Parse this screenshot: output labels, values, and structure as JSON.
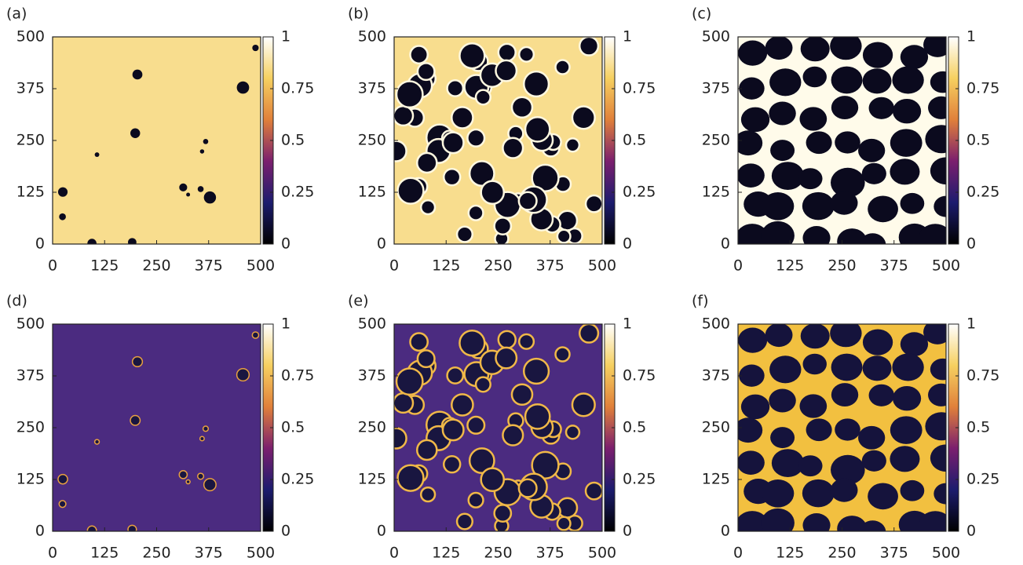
{
  "chart_data": [
    {
      "type": "heatmap",
      "label": "(a)",
      "xlim": [
        0,
        500
      ],
      "ylim": [
        0,
        500
      ],
      "xticks": [
        0,
        125,
        250,
        375,
        500
      ],
      "yticks": [
        0,
        125,
        250,
        375,
        500
      ],
      "zlim": [
        0,
        1
      ],
      "zticks": [
        0,
        0.25,
        0.5,
        0.75,
        1
      ],
      "colormap": [
        "#000000",
        "#1c1c6e",
        "#7b1f6e",
        "#e0803a",
        "#f6d060",
        "#ffffff"
      ],
      "background_color": "#f8dd8e",
      "blob_color": "#0b0a1e"
    },
    {
      "type": "heatmap",
      "label": "(b)",
      "xlim": [
        0,
        500
      ],
      "ylim": [
        0,
        500
      ],
      "xticks": [
        0,
        125,
        250,
        375,
        500
      ],
      "yticks": [
        0,
        125,
        250,
        375,
        500
      ],
      "zlim": [
        0,
        1
      ],
      "zticks": [
        0,
        0.25,
        0.5,
        0.75,
        1
      ],
      "colormap": [
        "#000000",
        "#1c1c6e",
        "#7b1f6e",
        "#e0803a",
        "#f6d060",
        "#ffffff"
      ],
      "background_color": "#f8dd8e",
      "blob_color": "#0b0a1e",
      "blob_outline": "#fff8e0"
    },
    {
      "type": "heatmap",
      "label": "(c)",
      "xlim": [
        0,
        500
      ],
      "ylim": [
        0,
        500
      ],
      "xticks": [
        0,
        125,
        250,
        375,
        500
      ],
      "yticks": [
        0,
        125,
        250,
        375,
        500
      ],
      "zlim": [
        0,
        1
      ],
      "zticks": [
        0,
        0.25,
        0.5,
        0.75,
        1
      ],
      "colormap": [
        "#000000",
        "#1c1c6e",
        "#7b1f6e",
        "#e0803a",
        "#f6d060",
        "#ffffff"
      ],
      "background_color": "#fffbea",
      "blob_color": "#0b0a1e"
    },
    {
      "type": "heatmap",
      "label": "(d)",
      "xlim": [
        0,
        500
      ],
      "ylim": [
        0,
        500
      ],
      "xticks": [
        0,
        125,
        250,
        375,
        500
      ],
      "yticks": [
        0,
        125,
        250,
        375,
        500
      ],
      "zlim": [
        0,
        1
      ],
      "zticks": [
        0,
        0.25,
        0.5,
        0.75,
        1
      ],
      "colormap": [
        "#000000",
        "#1c1c6e",
        "#7b1f6e",
        "#e0803a",
        "#f6d060",
        "#ffffff"
      ],
      "background_color": "#4b2b80",
      "blob_color": "#191640",
      "blob_outline": "#e8a040"
    },
    {
      "type": "heatmap",
      "label": "(e)",
      "xlim": [
        0,
        500
      ],
      "ylim": [
        0,
        500
      ],
      "xticks": [
        0,
        125,
        250,
        375,
        500
      ],
      "yticks": [
        0,
        125,
        250,
        375,
        500
      ],
      "zlim": [
        0,
        1
      ],
      "zticks": [
        0,
        0.25,
        0.5,
        0.75,
        1
      ],
      "colormap": [
        "#000000",
        "#1c1c6e",
        "#7b1f6e",
        "#e0803a",
        "#f6d060",
        "#ffffff"
      ],
      "background_color": "#4b2b80",
      "blob_color": "#191640",
      "blob_outline": "#f0b848"
    },
    {
      "type": "heatmap",
      "label": "(f)",
      "xlim": [
        0,
        500
      ],
      "ylim": [
        0,
        500
      ],
      "xticks": [
        0,
        125,
        250,
        375,
        500
      ],
      "yticks": [
        0,
        125,
        250,
        375,
        500
      ],
      "zlim": [
        0,
        1
      ],
      "zticks": [
        0,
        0.25,
        0.5,
        0.75,
        1
      ],
      "colormap": [
        "#000000",
        "#1c1c6e",
        "#7b1f6e",
        "#e0803a",
        "#f6d060",
        "#ffffff"
      ],
      "background_color": "#f2c040",
      "blob_color": "#15133c"
    }
  ]
}
